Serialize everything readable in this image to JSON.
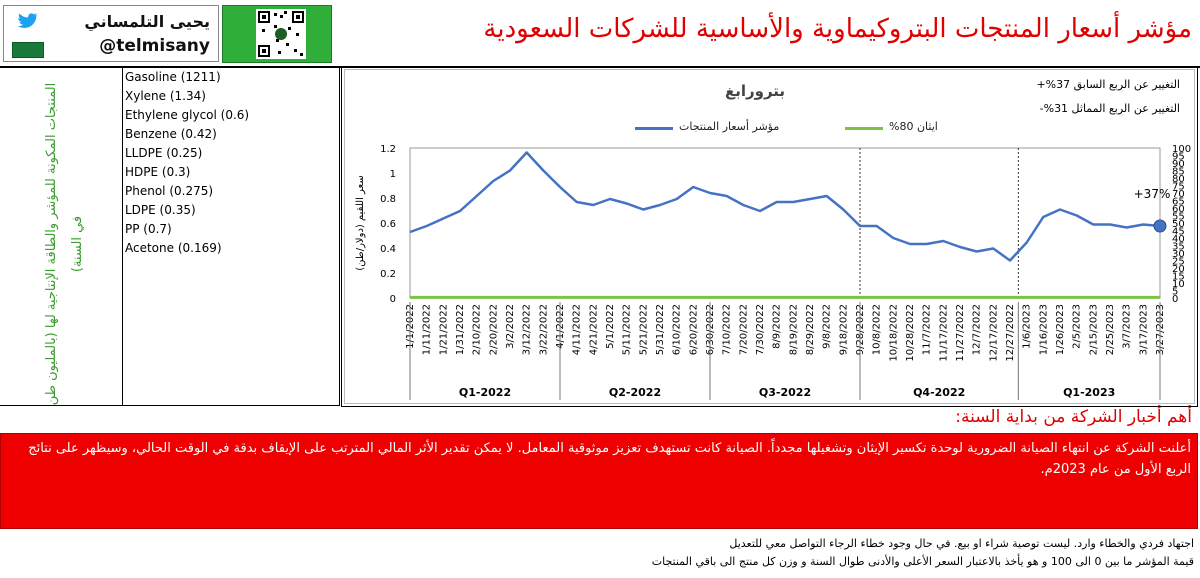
{
  "header": {
    "title": "مؤشر أسعار المنتجات البتروكيماوية والأساسية للشركات السعودية",
    "author_name": "يحيى التلمساني",
    "handle": "@telmisany"
  },
  "left_caption": "المنتجات المكونة للمؤشر والطاقة الإنتاجية لها (بالمليون طن في السنة)",
  "products": [
    "Gasoline (1211)",
    "Xylene (1.34)",
    "Ethylene glycol (0.6)",
    "Benzene (0.42)",
    "LLDPE (0.25)",
    "HDPE (0.3)",
    "Phenol (0.275)",
    "LDPE (0.35)",
    "PP (0.7)",
    "Acetone (0.169)"
  ],
  "chart_header": {
    "company": "بترورابغ",
    "change_prev_quarter": "التغيير عن الربع السابق 37%+",
    "change_same_quarter": "التغيير عن الربع المماثل 31%-",
    "end_label": "+37%"
  },
  "colors": {
    "index_line": "#4472c4",
    "ethane_line": "#7dc241",
    "title_red": "#e00000",
    "caption_green": "#3a9d2f"
  },
  "chart_data": {
    "type": "line",
    "ylabel_left": "سعر اللقيم (دولار/طن)",
    "ylim_left": [
      0,
      1.2
    ],
    "yticks_left": [
      "0",
      "0.2",
      "0.4",
      "0.6",
      "0.8",
      "1",
      "1.2"
    ],
    "ylim_right": [
      0,
      100
    ],
    "yticks_right": [
      "0",
      "5",
      "10",
      "15",
      "20",
      "25",
      "30",
      "35",
      "40",
      "45",
      "50",
      "55",
      "60",
      "65",
      "70",
      "75",
      "80",
      "85",
      "90",
      "95",
      "100"
    ],
    "x_tick_labels": [
      "1/1/2022",
      "1/11/2022",
      "1/21/2022",
      "1/31/2022",
      "2/10/2022",
      "2/20/2022",
      "3/2/2022",
      "3/12/2022",
      "3/22/2022",
      "4/1/2022",
      "4/11/2022",
      "4/21/2022",
      "5/1/2022",
      "5/11/2022",
      "5/21/2022",
      "5/31/2022",
      "6/10/2022",
      "6/20/2022",
      "6/30/2022",
      "7/10/2022",
      "7/20/2022",
      "7/30/2022",
      "8/9/2022",
      "8/19/2022",
      "8/29/2022",
      "9/8/2022",
      "9/18/2022",
      "9/28/2022",
      "10/8/2022",
      "10/18/2022",
      "10/28/2022",
      "11/7/2022",
      "11/17/2022",
      "11/27/2022",
      "12/7/2022",
      "12/17/2022",
      "12/27/2022",
      "1/6/2023",
      "1/16/2023",
      "1/26/2023",
      "2/5/2023",
      "2/15/2023",
      "2/25/2023",
      "3/7/2023",
      "3/17/2023",
      "3/27/2023"
    ],
    "quarters": [
      "Q1-2022",
      "Q2-2022",
      "Q3-2022",
      "Q4-2022",
      "Q1-2023"
    ],
    "series": [
      {
        "name": "مؤشر أسعار المنتجات",
        "axis": "right",
        "x": [
          "1/1/2022",
          "1/11/2022",
          "1/21/2022",
          "1/31/2022",
          "2/10/2022",
          "2/20/2022",
          "3/2/2022",
          "3/12/2022",
          "3/22/2022",
          "4/1/2022",
          "4/11/2022",
          "4/21/2022",
          "5/1/2022",
          "5/11/2022",
          "5/21/2022",
          "5/31/2022",
          "6/10/2022",
          "6/20/2022",
          "6/30/2022",
          "7/10/2022",
          "7/20/2022",
          "7/30/2022",
          "8/9/2022",
          "8/19/2022",
          "8/29/2022",
          "9/8/2022",
          "9/18/2022",
          "9/28/2022",
          "10/8/2022",
          "10/18/2022",
          "10/28/2022",
          "11/7/2022",
          "11/17/2022",
          "11/27/2022",
          "12/7/2022",
          "12/17/2022",
          "12/27/2022",
          "1/6/2023",
          "1/16/2023",
          "1/26/2023",
          "2/5/2023",
          "2/15/2023",
          "2/25/2023",
          "3/7/2023",
          "3/17/2023",
          "3/27/2023"
        ],
        "values": [
          44,
          48,
          53,
          58,
          68,
          78,
          85,
          97,
          85,
          74,
          64,
          62,
          66,
          63,
          59,
          62,
          66,
          74,
          70,
          68,
          62,
          58,
          64,
          64,
          66,
          68,
          59,
          48,
          48,
          40,
          36,
          36,
          38,
          34,
          31,
          33,
          25,
          37,
          54,
          59,
          55,
          49,
          49,
          47,
          49,
          48
        ]
      },
      {
        "name": "ايثان 80%",
        "axis": "left",
        "x": [
          "1/1/2022",
          "3/27/2023"
        ],
        "values": [
          0.005,
          0.005
        ]
      }
    ],
    "legend": "top"
  },
  "news": {
    "title": "أهم أخبار الشركة من بداية السنة:",
    "body": "أعلنت الشركة عن انتهاء الصيانة الضرورية لوحدة تكسير الإيثان وتشغيلها مجدداً. الصيانة كانت تستهدف تعزيز موثوقية المعامل. لا يمكن تقدير الأثر المالي المترتب على الإيقاف بدقة في الوقت الحالي، وسيظهر على نتائج الربع الأول من عام 2023م."
  },
  "disclaimer": [
    "اجتهاد فردي والخطاء وارد. ليست توصية شراء او بيع. في حال وجود خطاء الرجاء التواصل معي للتعديل",
    "قيمة المؤشر ما بين 0 الى 100 و هو يأخذ بالاعتبار السعر الأعلى والأدنى طوال السنة و وزن كل منتج الى باقي المنتجات"
  ]
}
